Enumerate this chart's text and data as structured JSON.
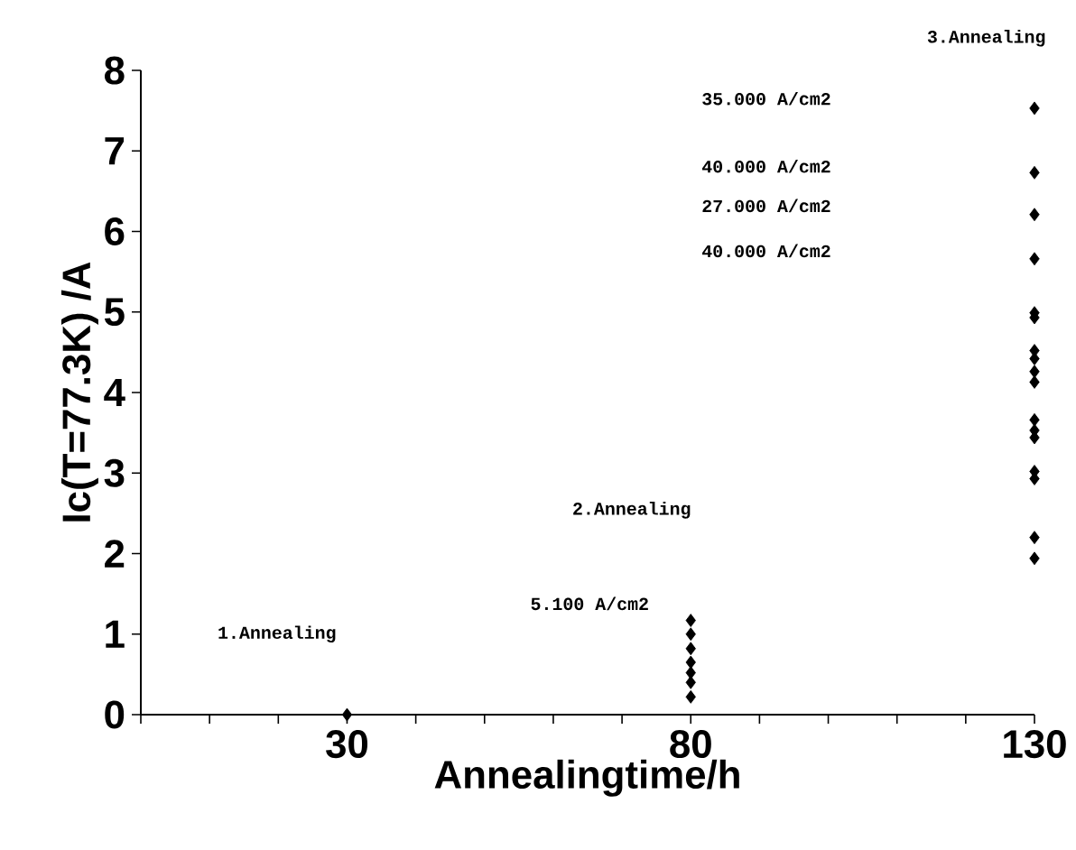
{
  "chart_data": {
    "type": "scatter",
    "xlabel": "Annealingtime/h",
    "ylabel": "Ic(T=77.3K) /A",
    "marker": "diamond",
    "series": [
      {
        "x": [
          30
        ],
        "values": [
          0
        ],
        "color": "#000000"
      },
      {
        "x": [
          80,
          80,
          80,
          80,
          80,
          80,
          80
        ],
        "values": [
          1.17,
          1.0,
          0.82,
          0.65,
          0.52,
          0.4,
          0.22
        ],
        "color": "#000000"
      },
      {
        "x": [
          130,
          130,
          130,
          130,
          130,
          130,
          130,
          130,
          130,
          130,
          130,
          130,
          130,
          130,
          130,
          130,
          130
        ],
        "values": [
          7.53,
          6.73,
          6.21,
          5.66,
          4.99,
          4.93,
          4.52,
          4.42,
          4.26,
          4.13,
          3.66,
          3.53,
          3.44,
          3.02,
          2.93,
          2.2,
          1.94
        ],
        "color": "#000000"
      }
    ],
    "xlim": [
      0,
      130
    ],
    "ylim": [
      0,
      8
    ],
    "xticks": [
      {
        "value": 0,
        "label": null
      },
      {
        "value": 10,
        "label": null
      },
      {
        "value": 20,
        "label": null
      },
      30,
      {
        "value": 40,
        "label": null
      },
      {
        "value": 50,
        "label": null
      },
      {
        "value": 60,
        "label": null
      },
      {
        "value": 70,
        "label": null
      },
      80,
      {
        "value": 90,
        "label": null
      },
      {
        "value": 100,
        "label": null
      },
      {
        "value": 110,
        "label": null
      },
      {
        "value": 120,
        "label": null
      },
      130
    ],
    "yticks": [
      0,
      1,
      2,
      3,
      4,
      5,
      6,
      7,
      8
    ],
    "annotations": [
      "1.Annealing",
      "2.Annealing",
      "3.Annealing",
      "5.100 A/cm2",
      "35.000 A/cm2",
      "40.000 A/cm2",
      "27.000 A/cm2",
      "40.000 A/cm2"
    ]
  }
}
